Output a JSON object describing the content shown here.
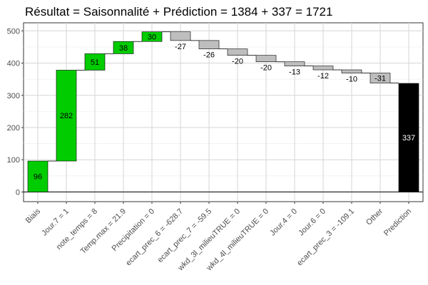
{
  "chart_data": {
    "type": "waterfall",
    "title": "Résultat = Saisonnalité + Prédiction = 1384 + 337 = 1721",
    "xlabel": "",
    "ylabel": "",
    "ylim": [
      -30,
      525
    ],
    "yticks": [
      0,
      100,
      200,
      300,
      400,
      500
    ],
    "grid": true,
    "categories": [
      "Biais",
      "Jour.7 = 1",
      "note_temps = 8",
      "Temp.max = 21.9",
      "Precipitation = 0",
      "ecart_prec_6 = -628.7",
      "ecart_prec_7 = -59.5",
      "wkd_3l_milieuTRUE = 0",
      "wkd_4l_milieuTRUE = 0",
      "Jour.4 = 0",
      "Jour.6 = 0",
      "ecart_prec_3 = -109.1",
      "Other",
      "Prediction"
    ],
    "values": [
      96,
      282,
      51,
      38,
      30,
      -27,
      -26,
      -20,
      -20,
      -13,
      -12,
      -10,
      -31,
      337
    ],
    "labels": [
      "96",
      "282",
      "51",
      "38",
      "30",
      "-27",
      "-26",
      "-20",
      "-20",
      "-13",
      "-12",
      "-10",
      "-31",
      "337"
    ],
    "colors": {
      "positive": "#00cc00",
      "negative": "#bebebe",
      "total": "#000000"
    }
  }
}
